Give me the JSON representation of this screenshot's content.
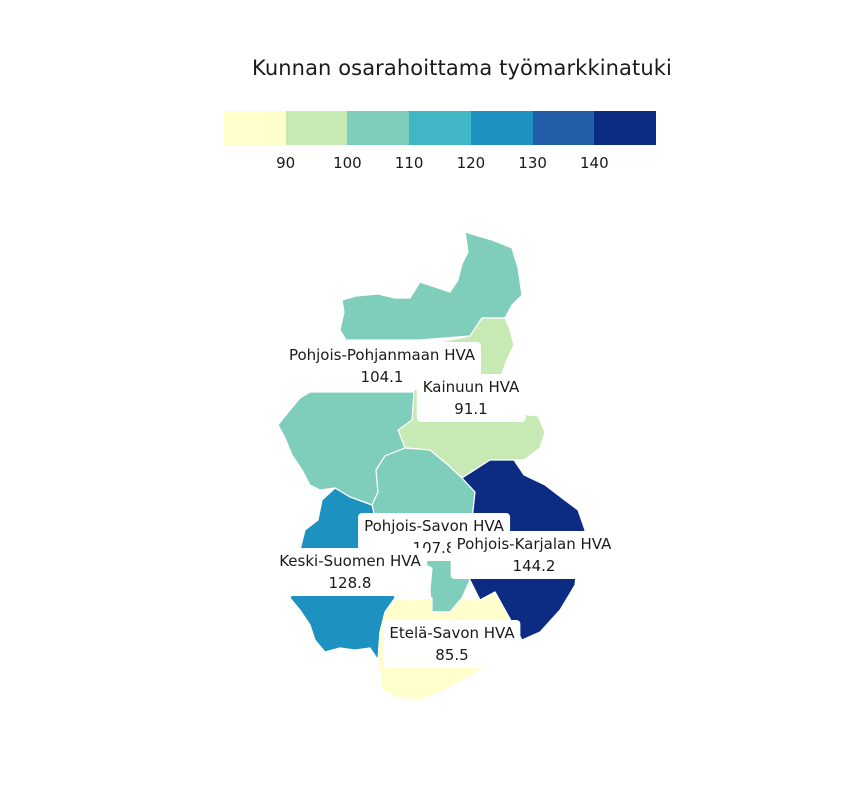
{
  "title": "Kunnan osarahoittama työmarkkinatuki",
  "legend": {
    "colors": [
      "#ffffcc",
      "#c7e9b4",
      "#7fcdbb",
      "#41b6c4",
      "#1d91c0",
      "#225ea8",
      "#0c2c84"
    ],
    "ticks": [
      "90",
      "100",
      "110",
      "120",
      "130",
      "140"
    ]
  },
  "regions": [
    {
      "name": "Pohjois-Pohjanmaan HVA",
      "value": "104.1",
      "color": "#7fcdbb"
    },
    {
      "name": "Kainuun HVA",
      "value": "91.1",
      "color": "#c7e9b4"
    },
    {
      "name": "Pohjois-Savon HVA",
      "value": "107.8",
      "color": "#7fcdbb"
    },
    {
      "name": "Pohjois-Karjalan HVA",
      "value": "144.2",
      "color": "#0c2c84"
    },
    {
      "name": "Keski-Suomen HVA",
      "value": "128.8",
      "color": "#1d91c0"
    },
    {
      "name": "Etelä-Savon HVA",
      "value": "85.5",
      "color": "#ffffcc"
    }
  ]
}
